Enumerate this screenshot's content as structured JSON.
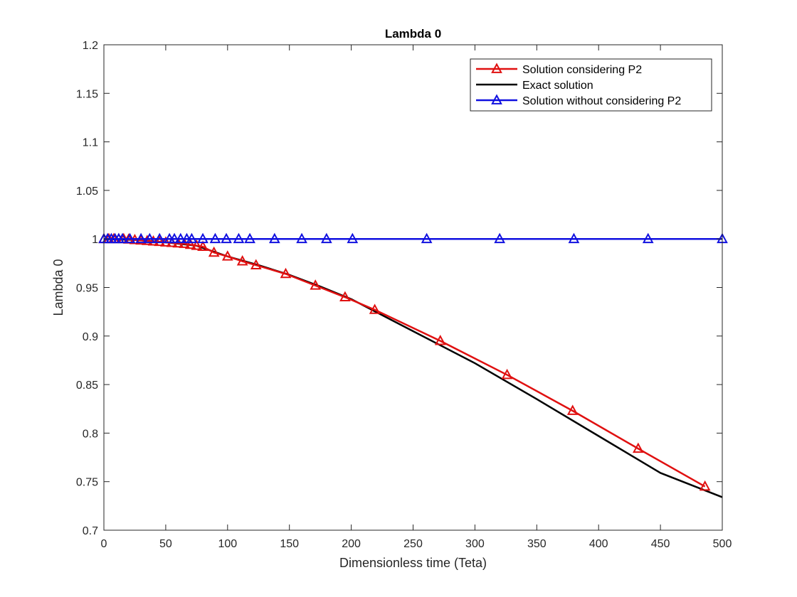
{
  "chart_data": {
    "type": "line",
    "title": "Lambda 0",
    "xlabel": "Dimensionless time (Teta)",
    "ylabel": "Lambda 0",
    "xlim": [
      0,
      500
    ],
    "ylim": [
      0.7,
      1.2
    ],
    "xticks": [
      0,
      50,
      100,
      150,
      200,
      250,
      300,
      350,
      400,
      450,
      500
    ],
    "xtick_labels": [
      "0",
      "50",
      "100",
      "150",
      "200",
      "250",
      "300",
      "350",
      "400",
      "450",
      "500"
    ],
    "yticks": [
      0.7,
      0.75,
      0.8,
      0.85,
      0.9,
      0.95,
      1.0,
      1.05,
      1.1,
      1.15,
      1.2
    ],
    "ytick_labels": [
      "0.7",
      "0.75",
      "0.8",
      "0.85",
      "0.9",
      "0.95",
      "1",
      "1.05",
      "1.1",
      "1.15",
      "1.2"
    ],
    "grid": false,
    "legend_position": "top-right",
    "series": [
      {
        "name": "Solution considering P2",
        "color": "#e01010",
        "marker": "triangle",
        "line": true,
        "x": [
          0,
          4,
          8,
          12,
          16,
          20,
          25,
          30,
          35,
          40,
          45,
          50,
          55,
          60,
          65,
          70,
          75,
          80,
          89,
          100,
          112,
          123,
          147,
          171,
          195,
          219,
          272,
          326,
          379,
          432,
          486
        ],
        "y": [
          1.0,
          1.0,
          1.0,
          1.0,
          1.0,
          0.9995,
          0.999,
          0.9985,
          0.998,
          0.9975,
          0.997,
          0.9965,
          0.996,
          0.9955,
          0.995,
          0.994,
          0.993,
          0.992,
          0.986,
          0.982,
          0.977,
          0.973,
          0.964,
          0.952,
          0.94,
          0.927,
          0.895,
          0.86,
          0.823,
          0.784,
          0.745
        ]
      },
      {
        "name": "Exact solution",
        "color": "#000000",
        "marker": "none",
        "line": true,
        "x": [
          0,
          25,
          50,
          75,
          100,
          125,
          150,
          175,
          200,
          250,
          300,
          350,
          400,
          450,
          500
        ],
        "y": [
          1.0,
          0.999,
          0.9965,
          0.993,
          0.982,
          0.973,
          0.963,
          0.951,
          0.938,
          0.905,
          0.872,
          0.835,
          0.797,
          0.759,
          0.734
        ]
      },
      {
        "name": "Solution without considering P2",
        "color": "#1010e0",
        "marker": "triangle",
        "line": true,
        "x": [
          0,
          3,
          6,
          9,
          12,
          15,
          21,
          30,
          37,
          45,
          53,
          57,
          62,
          67,
          71,
          80,
          90,
          99,
          109,
          118,
          138,
          160,
          180,
          201,
          261,
          320,
          380,
          440,
          500
        ],
        "y": [
          1.0,
          1.0,
          1.0,
          1.0,
          1.0,
          1.0,
          1.0,
          1.0,
          1.0,
          1.0,
          1.0,
          1.0,
          1.0,
          1.0,
          1.0,
          1.0,
          1.0,
          1.0,
          1.0,
          1.0,
          1.0,
          1.0,
          1.0,
          1.0,
          1.0,
          1.0,
          1.0,
          1.0,
          1.0
        ]
      }
    ]
  }
}
